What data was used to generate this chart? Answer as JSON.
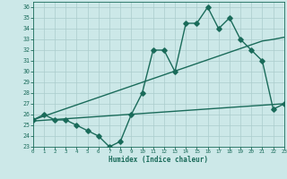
{
  "title": "",
  "xlabel": "Humidex (Indice chaleur)",
  "x": [
    0,
    1,
    2,
    3,
    4,
    5,
    6,
    7,
    8,
    9,
    10,
    11,
    12,
    13,
    14,
    15,
    16,
    17,
    18,
    19,
    20,
    21,
    22,
    23
  ],
  "y_main": [
    25.5,
    26.0,
    25.5,
    25.5,
    25.0,
    24.5,
    24.0,
    23.0,
    23.5,
    26.0,
    28.0,
    32.0,
    32.0,
    30.0,
    34.5,
    34.5,
    36.0,
    34.0,
    35.0,
    33.0,
    32.0,
    31.0,
    26.5,
    27.0
  ],
  "y_trend1": [
    25.5,
    25.85,
    26.2,
    26.55,
    26.9,
    27.25,
    27.6,
    27.95,
    28.3,
    28.65,
    29.0,
    29.35,
    29.7,
    30.05,
    30.4,
    30.75,
    31.1,
    31.45,
    31.8,
    32.15,
    32.5,
    32.85,
    33.0,
    33.2
  ],
  "y_trend2": [
    25.4,
    25.47,
    25.54,
    25.61,
    25.68,
    25.75,
    25.82,
    25.89,
    25.96,
    26.03,
    26.1,
    26.17,
    26.24,
    26.31,
    26.38,
    26.45,
    26.52,
    26.59,
    26.66,
    26.73,
    26.8,
    26.87,
    26.94,
    27.01
  ],
  "line_color": "#1a6b5a",
  "bg_color": "#cce8e8",
  "grid_color": "#aacccc",
  "xlim": [
    0,
    23
  ],
  "ylim": [
    23,
    36.5
  ],
  "yticks": [
    23,
    24,
    25,
    26,
    27,
    28,
    29,
    30,
    31,
    32,
    33,
    34,
    35,
    36
  ],
  "xticks": [
    0,
    1,
    2,
    3,
    4,
    5,
    6,
    7,
    8,
    9,
    10,
    11,
    12,
    13,
    14,
    15,
    16,
    17,
    18,
    19,
    20,
    21,
    22,
    23
  ],
  "marker": "D",
  "markersize": 2.8,
  "linewidth": 1.0
}
